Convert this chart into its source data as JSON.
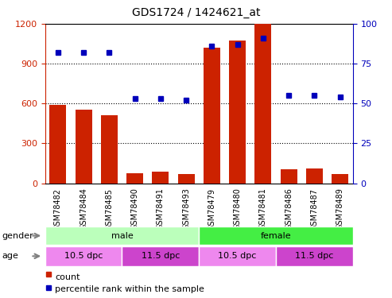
{
  "title": "GDS1724 / 1424621_at",
  "samples": [
    "GSM78482",
    "GSM78484",
    "GSM78485",
    "GSM78490",
    "GSM78491",
    "GSM78493",
    "GSM78479",
    "GSM78480",
    "GSM78481",
    "GSM78486",
    "GSM78487",
    "GSM78489"
  ],
  "counts": [
    590,
    555,
    510,
    75,
    90,
    68,
    1020,
    1075,
    1200,
    108,
    112,
    72
  ],
  "percentiles": [
    82,
    82,
    82,
    53,
    53,
    52,
    86,
    87,
    91,
    55,
    55,
    54
  ],
  "ylim_left": [
    0,
    1200
  ],
  "ylim_right": [
    0,
    100
  ],
  "yticks_left": [
    0,
    300,
    600,
    900,
    1200
  ],
  "yticks_right": [
    0,
    25,
    50,
    75,
    100
  ],
  "bar_color": "#cc2200",
  "dot_color": "#0000bb",
  "gender_labels": [
    {
      "label": "male",
      "start": 0,
      "end": 6,
      "color": "#bbffbb"
    },
    {
      "label": "female",
      "start": 6,
      "end": 12,
      "color": "#44ee44"
    }
  ],
  "age_labels": [
    {
      "label": "10.5 dpc",
      "start": 0,
      "end": 3,
      "color": "#ee88ee"
    },
    {
      "label": "11.5 dpc",
      "start": 3,
      "end": 6,
      "color": "#cc44cc"
    },
    {
      "label": "10.5 dpc",
      "start": 6,
      "end": 9,
      "color": "#ee88ee"
    },
    {
      "label": "11.5 dpc",
      "start": 9,
      "end": 12,
      "color": "#cc44cc"
    }
  ],
  "legend_count_color": "#cc2200",
  "legend_pct_color": "#0000bb",
  "background_color": "#ffffff",
  "tick_bg_color": "#cccccc",
  "grid_color": "#000000",
  "border_color": "#000000",
  "left_axis_color": "#cc2200",
  "right_axis_color": "#0000bb"
}
